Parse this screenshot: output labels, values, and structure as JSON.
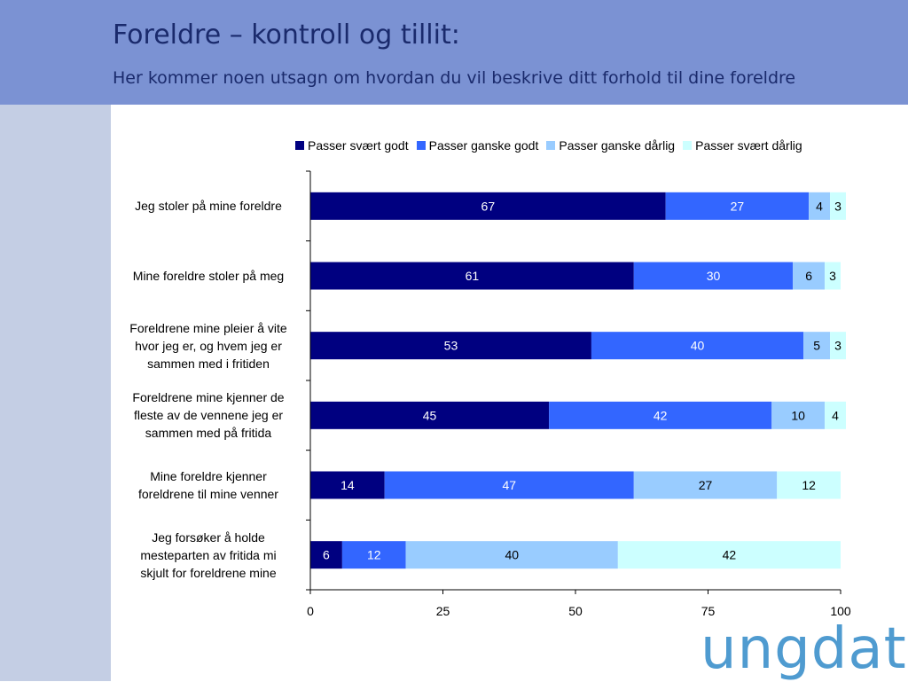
{
  "header": {
    "title": "Foreldre – kontroll og tillit:",
    "subtitle": "Her kommer noen utsagn om hvordan du vil beskrive ditt forhold til dine foreldre"
  },
  "logo": {
    "text": "ungdata"
  },
  "chart_data": {
    "type": "bar",
    "orientation": "horizontal",
    "stacked": true,
    "categories": [
      "Jeg stoler på mine foreldre",
      "Mine foreldre stoler på meg",
      "Foreldrene mine pleier å vite hvor jeg er, og hvem jeg er sammen med i fritiden",
      "Foreldrene mine kjenner de fleste av de vennene jeg er sammen med på fritida",
      "Mine foreldre kjenner foreldrene til mine venner",
      "Jeg forsøker å holde mesteparten av fritida mi skjult for foreldrene mine"
    ],
    "series": [
      {
        "name": "Passer svært godt",
        "color": "#000080",
        "label_color": "#ffffff",
        "values": [
          67,
          61,
          53,
          45,
          14,
          6
        ]
      },
      {
        "name": "Passer ganske godt",
        "color": "#3366ff",
        "label_color": "#ffffff",
        "values": [
          27,
          30,
          40,
          42,
          47,
          12
        ]
      },
      {
        "name": "Passer ganske dårlig",
        "color": "#99ccff",
        "label_color": "#000000",
        "values": [
          4,
          6,
          5,
          10,
          27,
          40
        ]
      },
      {
        "name": "Passer svært dårlig",
        "color": "#ccffff",
        "label_color": "#000000",
        "values": [
          3,
          3,
          3,
          4,
          12,
          42
        ]
      }
    ],
    "xlim": [
      0,
      100
    ],
    "xticks": [
      0,
      25,
      50,
      75,
      100
    ],
    "grid": false,
    "legend_position": "top"
  }
}
